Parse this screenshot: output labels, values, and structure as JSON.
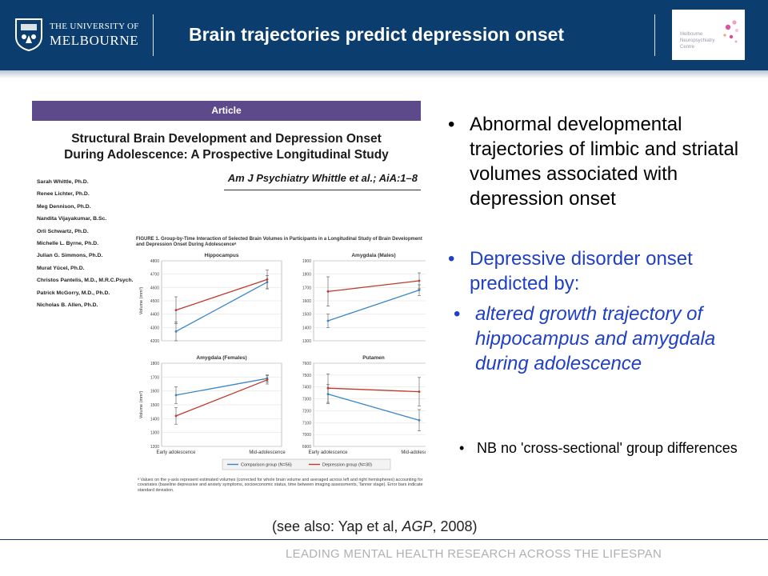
{
  "header": {
    "university_line1": "THE UNIVERSITY OF",
    "university_line2": "MELBOURNE",
    "title": "Brain trajectories predict depression onset",
    "centre_logo_text": [
      "Melbourne",
      "Neuropsychiatry",
      "Centre"
    ],
    "background_color": "#0b3d6e"
  },
  "paper": {
    "section_label": "Article",
    "title_line1": "Structural Brain Development and Depression Onset",
    "title_line2": "During Adolescence: A Prospective Longitudinal Study",
    "citation": "Am J Psychiatry Whittle et al.; AiA:1–8",
    "authors": [
      "Sarah Whittle, Ph.D.",
      "Renee Lichter, Ph.D.",
      "Meg Dennison, Ph.D.",
      "Nandita Vijayakumar, B.Sc.",
      "Orli Schwartz, Ph.D.",
      "Michelle L. Byrne, Ph.D.",
      "Julian G. Simmons, Ph.D.",
      "Murat Yücel, Ph.D.",
      "Christos Pantelis, M.D., M.R.C.Psych.",
      "Patrick McGorry, M.D., Ph.D.",
      "Nicholas B. Allen, Ph.D."
    ],
    "figure_caption": "FIGURE 1. Group-by-Time Interaction of Selected Brain Volumes in Participants in a Longitudinal Study of Brain Development and Depression Onset During Adolescenceᵃ",
    "footnote": "ᵃ Values on the y-axis represent estimated volumes (corrected for whole brain volume and averaged across left and right hemispheres) accounting for covariates (baseline depressive and anxiety symptoms, socioeconomic status, time between imaging assessments, Tanner stage). Error bars indicate standard deviation."
  },
  "chart_data": [
    {
      "type": "line",
      "title": "Hippocampus",
      "ylabel": "Volume (mm³)",
      "categories": [
        "Early adolescence",
        "Mid-adolescence"
      ],
      "ylim": [
        4200,
        4800
      ],
      "yticks": [
        4200,
        4300,
        4400,
        4500,
        4600,
        4700,
        4800
      ],
      "series": [
        {
          "name": "Comparison group (N=56)",
          "color": "#3a86c8",
          "values": [
            4270,
            4640
          ],
          "err": [
            70,
            50
          ]
        },
        {
          "name": "Depression group (N=30)",
          "color": "#c0392b",
          "values": [
            4430,
            4660
          ],
          "err": [
            100,
            70
          ]
        }
      ]
    },
    {
      "type": "line",
      "title": "Amygdala (Males)",
      "ylabel": "",
      "categories": [
        "Early adolescence",
        "Mid-adolescence"
      ],
      "ylim": [
        1300,
        1900
      ],
      "yticks": [
        1300,
        1400,
        1500,
        1600,
        1700,
        1800,
        1900
      ],
      "series": [
        {
          "name": "Comparison group (N=56)",
          "color": "#3a86c8",
          "values": [
            1450,
            1680
          ],
          "err": [
            50,
            40
          ]
        },
        {
          "name": "Depression group (N=30)",
          "color": "#c0392b",
          "values": [
            1670,
            1750
          ],
          "err": [
            110,
            60
          ]
        }
      ]
    },
    {
      "type": "line",
      "title": "Amygdala (Females)",
      "ylabel": "Volume (mm³)",
      "categories": [
        "Early adolescence",
        "Mid-adolescence"
      ],
      "ylim": [
        1200,
        1800
      ],
      "yticks": [
        1200,
        1300,
        1400,
        1500,
        1600,
        1700,
        1800
      ],
      "series": [
        {
          "name": "Comparison group (N=56)",
          "color": "#3a86c8",
          "values": [
            1570,
            1690
          ],
          "err": [
            60,
            25
          ]
        },
        {
          "name": "Depression group (N=30)",
          "color": "#c0392b",
          "values": [
            1420,
            1680
          ],
          "err": [
            60,
            30
          ]
        }
      ]
    },
    {
      "type": "line",
      "title": "Putamen",
      "ylabel": "",
      "categories": [
        "Early adolescence",
        "Mid-adolescence"
      ],
      "ylim": [
        6900,
        7600
      ],
      "yticks": [
        6900,
        7000,
        7100,
        7200,
        7300,
        7400,
        7500,
        7600
      ],
      "series": [
        {
          "name": "Comparison group (N=56)",
          "color": "#3a86c8",
          "values": [
            7340,
            7120
          ],
          "err": [
            80,
            90
          ]
        },
        {
          "name": "Depression group (N=30)",
          "color": "#c0392b",
          "values": [
            7390,
            7360
          ],
          "err": [
            120,
            120
          ]
        }
      ]
    }
  ],
  "legend": [
    "Comparison group (N=56)",
    "Depression group (N=30)"
  ],
  "bullets": {
    "item1": "Abnormal developmental trajectories of limbic and striatal volumes associated with depression onset",
    "item2": "Depressive disorder onset predicted by:",
    "item2_sub": "altered growth trajectory of hippocampus and amygdala during adolescence",
    "item3": "NB no 'cross-sectional' group differences",
    "bullet_symbol": "•",
    "highlight_color": "#1f3fc7"
  },
  "footer": {
    "see_also_prefix": "(see also: Yap et al, ",
    "see_also_journal": "AGP",
    "see_also_suffix": ", 2008)",
    "tagline": "LEADING MENTAL HEALTH RESEARCH ACROSS THE LIFESPAN"
  }
}
